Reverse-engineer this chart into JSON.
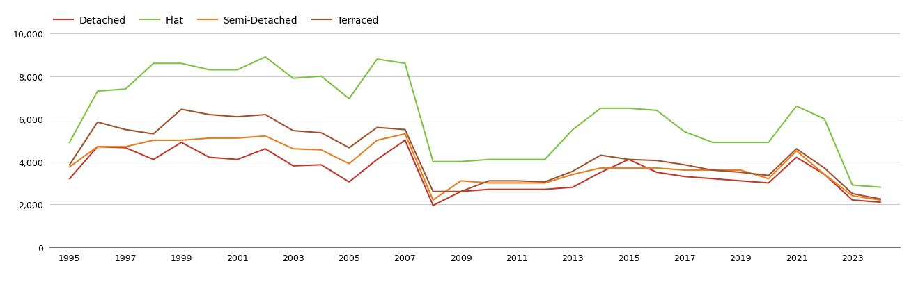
{
  "years": [
    1995,
    1996,
    1997,
    1998,
    1999,
    2000,
    2001,
    2002,
    2003,
    2004,
    2005,
    2006,
    2007,
    2008,
    2009,
    2010,
    2011,
    2012,
    2013,
    2014,
    2015,
    2016,
    2017,
    2018,
    2019,
    2020,
    2021,
    2022,
    2023,
    2024
  ],
  "detached": [
    3200,
    4700,
    4650,
    4100,
    4900,
    4200,
    4100,
    4600,
    3800,
    3850,
    3050,
    4100,
    5000,
    1950,
    2600,
    2700,
    2700,
    2700,
    2800,
    3500,
    4100,
    3500,
    3300,
    3200,
    3100,
    3000,
    4200,
    3400,
    2200,
    2100
  ],
  "flat": [
    4900,
    7300,
    7400,
    8600,
    8600,
    8300,
    8300,
    8900,
    7900,
    8000,
    6950,
    8800,
    8600,
    4000,
    4000,
    4100,
    4100,
    4100,
    5500,
    6500,
    6500,
    6400,
    5400,
    4900,
    4900,
    4900,
    6600,
    6000,
    2900,
    2800
  ],
  "semi_detached": [
    3750,
    4700,
    4700,
    5000,
    5000,
    5100,
    5100,
    5200,
    4600,
    4550,
    3900,
    5000,
    5300,
    2200,
    3100,
    3000,
    3000,
    3000,
    3400,
    3700,
    3700,
    3700,
    3600,
    3600,
    3600,
    3200,
    4500,
    3400,
    2400,
    2200
  ],
  "terraced": [
    3850,
    5850,
    5500,
    5300,
    6450,
    6200,
    6100,
    6200,
    5450,
    5350,
    4650,
    5600,
    5500,
    2600,
    2600,
    3100,
    3100,
    3050,
    3550,
    4300,
    4100,
    4050,
    3850,
    3600,
    3500,
    3350,
    4600,
    3700,
    2500,
    2250
  ],
  "colors": {
    "detached": "#c0392b",
    "flat": "#7dc242",
    "semi_detached": "#e67e22",
    "terraced": "#a0522d"
  },
  "ylim": [
    0,
    10000
  ],
  "yticks": [
    0,
    2000,
    4000,
    6000,
    8000,
    10000
  ],
  "xtick_years": [
    1995,
    1997,
    1999,
    2001,
    2003,
    2005,
    2007,
    2009,
    2011,
    2013,
    2015,
    2017,
    2019,
    2021,
    2023
  ],
  "background_color": "#ffffff",
  "grid_color": "#cccccc",
  "linewidth": 1.5,
  "tick_fontsize": 9,
  "legend_fontsize": 10
}
